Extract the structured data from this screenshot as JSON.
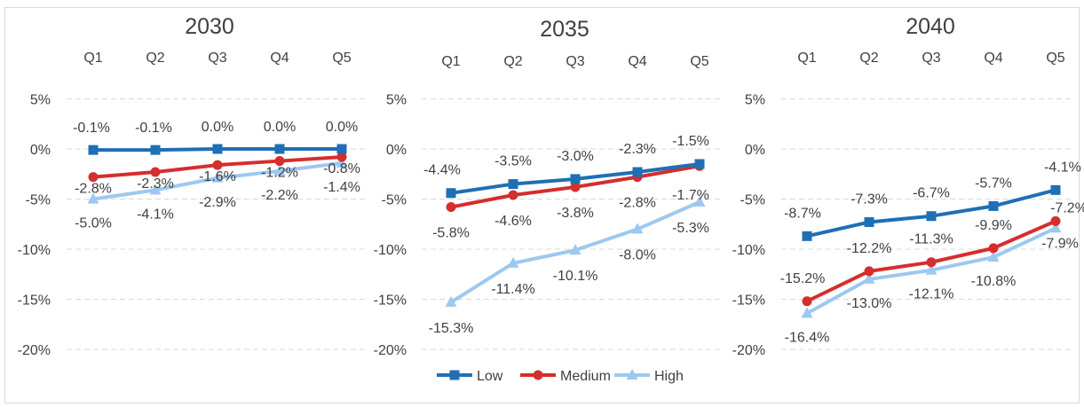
{
  "chart_data": [
    {
      "type": "line",
      "title": "2030",
      "categories": [
        "Q1",
        "Q2",
        "Q3",
        "Q4",
        "Q5"
      ],
      "yticks": [
        "5%",
        "0%",
        "-5%",
        "-10%",
        "-15%",
        "-20%"
      ],
      "ylim": [
        -20,
        5
      ],
      "series": [
        {
          "name": "Low",
          "values": [
            -0.1,
            -0.1,
            0.0,
            0.0,
            0.0
          ],
          "labels": [
            "-0.1%",
            "-0.1%",
            "0.0%",
            "0.0%",
            "0.0%"
          ]
        },
        {
          "name": "Medium",
          "values": [
            -2.8,
            -2.3,
            -1.6,
            -1.2,
            -0.8
          ],
          "labels": [
            "-2.8%",
            "-2.3%",
            "-1.6%",
            "-1.2%",
            "-0.8%"
          ]
        },
        {
          "name": "High",
          "values": [
            -5.0,
            -4.1,
            -2.9,
            -2.2,
            -1.4
          ],
          "labels": [
            "-5.0%",
            "-4.1%",
            "-2.9%",
            "-2.2%",
            "-1.4%"
          ]
        }
      ]
    },
    {
      "type": "line",
      "title": "2035",
      "categories": [
        "Q1",
        "Q2",
        "Q3",
        "Q4",
        "Q5"
      ],
      "yticks": [
        "5%",
        "0%",
        "-5%",
        "-10%",
        "-15%",
        "-20%"
      ],
      "ylim": [
        -20,
        5
      ],
      "series": [
        {
          "name": "Low",
          "values": [
            -4.4,
            -3.5,
            -3.0,
            -2.3,
            -1.5
          ],
          "labels": [
            "-4.4%",
            "-3.5%",
            "-3.0%",
            "-2.3%",
            "-1.5%"
          ]
        },
        {
          "name": "Medium",
          "values": [
            -5.8,
            -4.6,
            -3.8,
            -2.8,
            -1.7
          ],
          "labels": [
            "-5.8%",
            "-4.6%",
            "-3.8%",
            "-2.8%",
            "-1.7%"
          ]
        },
        {
          "name": "High",
          "values": [
            -15.3,
            -11.4,
            -10.1,
            -8.0,
            -5.3
          ],
          "labels": [
            "-15.3%",
            "-11.4%",
            "-10.1%",
            "-8.0%",
            "-5.3%"
          ]
        }
      ]
    },
    {
      "type": "line",
      "title": "2040",
      "categories": [
        "Q1",
        "Q2",
        "Q3",
        "Q4",
        "Q5"
      ],
      "yticks": [
        "5%",
        "0%",
        "-5%",
        "-10%",
        "-15%",
        "-20%"
      ],
      "ylim": [
        -20,
        5
      ],
      "series": [
        {
          "name": "Low",
          "values": [
            -8.7,
            -7.3,
            -6.7,
            -5.7,
            -4.1
          ],
          "labels": [
            "-8.7%",
            "-7.3%",
            "-6.7%",
            "-5.7%",
            "-4.1%"
          ]
        },
        {
          "name": "Medium",
          "values": [
            -15.2,
            -12.2,
            -11.3,
            -9.9,
            -7.2
          ],
          "labels": [
            "-15.2%",
            "-12.2%",
            "-11.3%",
            "-9.9%",
            "-7.2%"
          ]
        },
        {
          "name": "High",
          "values": [
            -16.4,
            -13.0,
            -12.1,
            -10.8,
            -7.9
          ],
          "labels": [
            "-16.4%",
            "-13.0%",
            "-12.1%",
            "-10.8%",
            "-7.9%"
          ]
        }
      ]
    }
  ],
  "legend": {
    "placement": "bottom-center",
    "items": [
      {
        "name": "Low",
        "color": "#1f6fb4",
        "marker": "square"
      },
      {
        "name": "Medium",
        "color": "#d62d2d",
        "marker": "circle"
      },
      {
        "name": "High",
        "color": "#9dc8f0",
        "marker": "triangle"
      }
    ]
  },
  "colors": {
    "Low": "#1f6fb4",
    "Medium": "#d62d2d",
    "High": "#9dc8f0",
    "grid": "#d9d9d9",
    "text": "#404040"
  }
}
